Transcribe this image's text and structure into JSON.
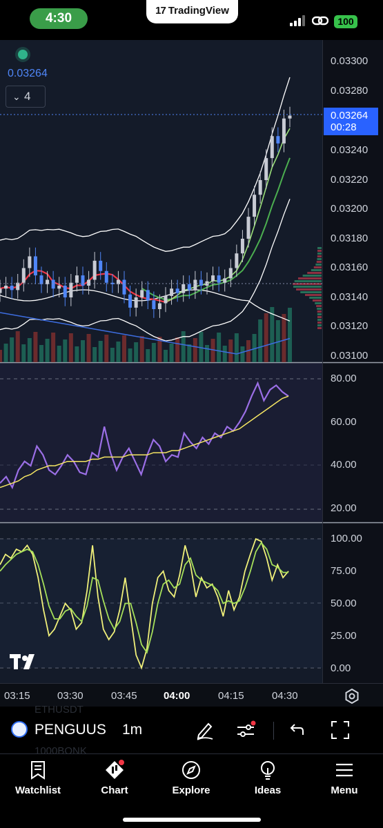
{
  "status_bar": {
    "time": "4:30",
    "app_banner": "TradingView",
    "battery": "100"
  },
  "chart": {
    "last_price": "0.03264",
    "collapsed_count": "4",
    "price_tag": {
      "price": "0.03264",
      "countdown": "00:28"
    },
    "main_axis_labels": [
      "0.03300",
      "0.03280",
      "0.03240",
      "0.03220",
      "0.03200",
      "0.03180",
      "0.03160",
      "0.03140",
      "0.03120",
      "0.03100"
    ],
    "rsi_axis_labels": [
      "80.00",
      "60.00",
      "40.00",
      "20.00"
    ],
    "stoch_axis_labels": [
      "100.00",
      "75.00",
      "50.00",
      "25.00",
      "0.00"
    ],
    "time_labels": [
      "03:15",
      "03:30",
      "03:45",
      "04:00",
      "04:15",
      "04:30"
    ],
    "colors": {
      "up": "#4f86f7",
      "down": "#b04a4a",
      "ma_red": "#f23645",
      "ma_green": "#4caf50",
      "rsi": "#9b6fe6",
      "rsi_ma": "#f5e663",
      "stoch_k": "#f0f07a",
      "stoch_d": "#a6e05a",
      "price_tag": "#2962ff"
    }
  },
  "chart_data": [
    {
      "type": "candlestick",
      "title": "",
      "ylim": [
        0.031,
        0.033
      ],
      "x_ticks": [
        "03:15",
        "03:30",
        "03:45",
        "04:00",
        "04:15",
        "04:30"
      ],
      "last": 0.03264,
      "close_trend": [
        0.03146,
        0.03148,
        0.03145,
        0.0315,
        0.0316,
        0.03168,
        0.03155,
        0.03149,
        0.03152,
        0.03146,
        0.03148,
        0.0314,
        0.0315,
        0.03155,
        0.03148,
        0.03152,
        0.03165,
        0.03158,
        0.0315,
        0.03149,
        0.03152,
        0.03142,
        0.03133,
        0.0314,
        0.03145,
        0.03138,
        0.03132,
        0.03136,
        0.03141,
        0.03146,
        0.03143,
        0.03149,
        0.03145,
        0.03152,
        0.03148,
        0.03151,
        0.03155,
        0.0315,
        0.03153,
        0.0316,
        0.0317,
        0.0318,
        0.03195,
        0.0321,
        0.0322,
        0.03235,
        0.0325,
        0.03245,
        0.03262,
        0.03264
      ]
    },
    {
      "type": "line",
      "title": "",
      "ylim": [
        15,
        85
      ],
      "series": [
        {
          "values": [
            32,
            35,
            30,
            38,
            42,
            40,
            49,
            45,
            38,
            36,
            40,
            45,
            42,
            37,
            36,
            46,
            44,
            58,
            46,
            38,
            44,
            48,
            42,
            36,
            45,
            52,
            49,
            42,
            45,
            44,
            55,
            51,
            48,
            53,
            50,
            55,
            53,
            58,
            56,
            60,
            65,
            72,
            78,
            70,
            75,
            77,
            74,
            72
          ]
        },
        {
          "values": [
            30,
            31,
            32,
            33,
            35,
            36,
            38,
            39,
            40,
            40,
            41,
            42,
            42,
            42,
            42,
            43,
            43,
            44,
            44,
            44,
            44,
            45,
            45,
            45,
            45,
            46,
            46,
            46,
            47,
            47,
            48,
            49,
            50,
            51,
            52,
            53,
            54,
            55,
            56,
            57,
            59,
            61,
            63,
            65,
            67,
            69,
            71,
            72
          ]
        }
      ]
    },
    {
      "type": "line",
      "title": "",
      "ylim": [
        -5,
        105
      ],
      "series": [
        {
          "values": [
            80,
            88,
            85,
            92,
            90,
            95,
            88,
            70,
            45,
            25,
            30,
            40,
            50,
            45,
            30,
            35,
            60,
            95,
            55,
            30,
            22,
            28,
            45,
            70,
            40,
            10,
            0,
            15,
            50,
            70,
            75,
            60,
            55,
            72,
            95,
            80,
            55,
            70,
            62,
            65,
            55,
            40,
            60,
            45,
            55,
            75,
            88,
            100,
            98,
            85,
            68,
            80,
            70,
            75
          ]
        },
        {
          "values": [
            75,
            80,
            84,
            88,
            90,
            92,
            90,
            80,
            65,
            48,
            38,
            38,
            44,
            46,
            40,
            36,
            48,
            70,
            68,
            52,
            38,
            30,
            36,
            50,
            50,
            35,
            18,
            12,
            28,
            50,
            65,
            68,
            62,
            65,
            80,
            85,
            72,
            68,
            66,
            64,
            60,
            50,
            52,
            50,
            52,
            62,
            75,
            90,
            97,
            92,
            80,
            78,
            74,
            74
          ]
        }
      ]
    }
  ],
  "toolbar": {
    "symbol": "PENGUUS",
    "interval": "1m",
    "ghost_top": "ETHUSDT",
    "ghost_bottom": "1000BONK"
  },
  "tabs": [
    {
      "label": "Watchlist"
    },
    {
      "label": "Chart"
    },
    {
      "label": "Explore"
    },
    {
      "label": "Ideas"
    },
    {
      "label": "Menu"
    }
  ]
}
